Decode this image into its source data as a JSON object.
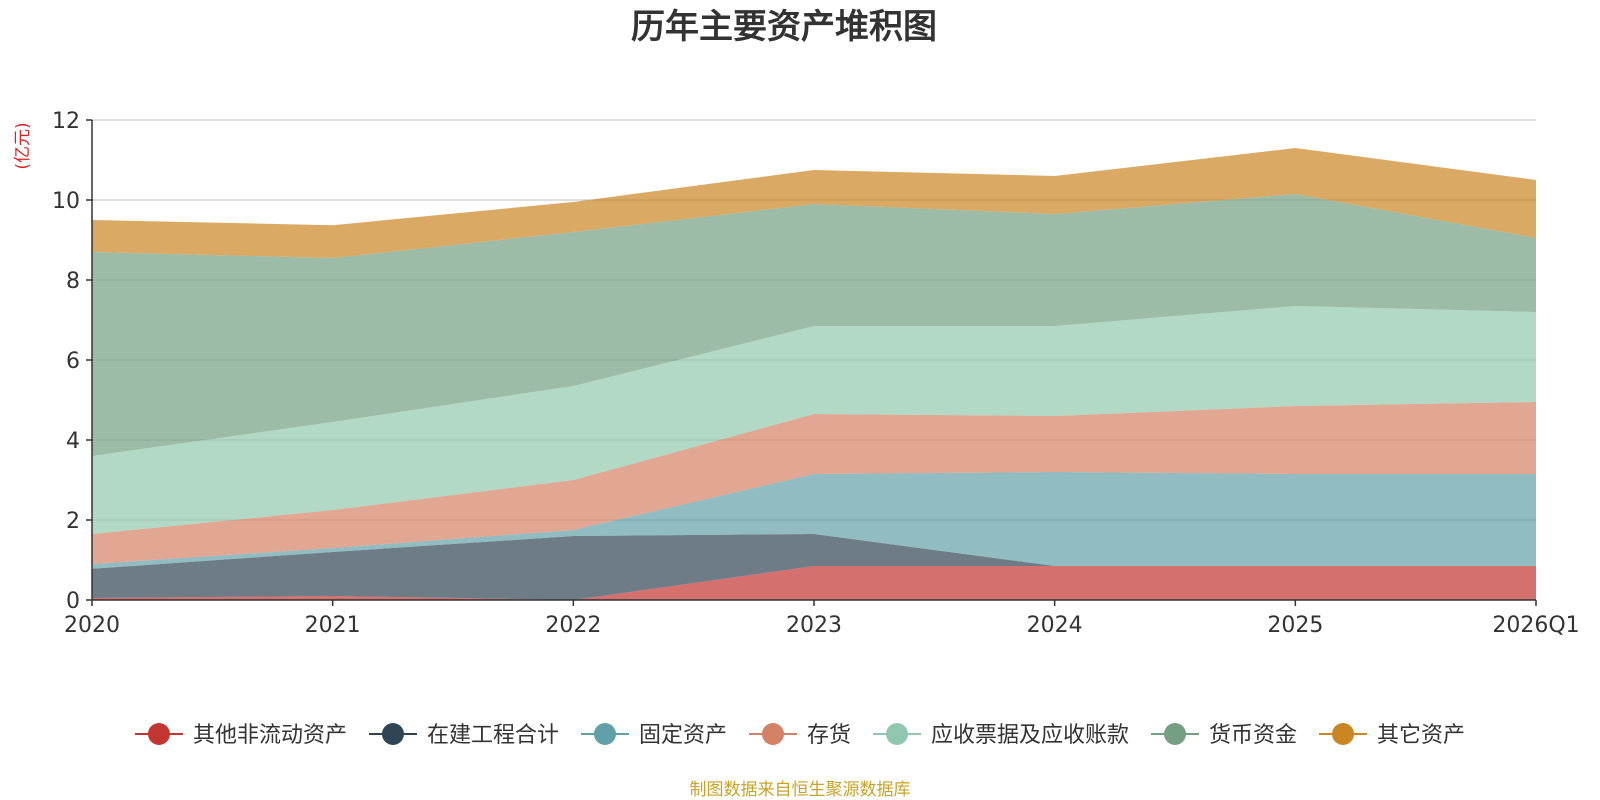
{
  "chart_data": {
    "type": "area",
    "stacked": true,
    "title": "历年主要资产堆积图",
    "ylabel": "(亿元)",
    "xlabel": "",
    "ylim": [
      0,
      12
    ],
    "yticks": [
      0,
      2,
      4,
      6,
      8,
      10,
      12
    ],
    "categories": [
      "2020",
      "2021",
      "2022",
      "2023",
      "2024",
      "2025",
      "2026Q1"
    ],
    "legend_position": "bottom",
    "series": [
      {
        "name": "其他非流动资产",
        "color": "#c23531",
        "values": [
          0.05,
          0.1,
          0.0,
          0.85,
          0.85,
          0.85,
          0.85
        ]
      },
      {
        "name": "在建工程合计",
        "color": "#2f4554",
        "values": [
          0.73,
          1.1,
          1.6,
          0.8,
          0.0,
          0.0,
          0.0
        ]
      },
      {
        "name": "固定资产",
        "color": "#61a0a8",
        "values": [
          0.12,
          0.1,
          0.15,
          1.5,
          2.35,
          2.3,
          2.3
        ]
      },
      {
        "name": "存货",
        "color": "#d48265",
        "values": [
          0.75,
          0.95,
          1.25,
          1.5,
          1.4,
          1.7,
          1.8
        ]
      },
      {
        "name": "应收票据及应收账款",
        "color": "#91c7ae",
        "values": [
          1.95,
          2.2,
          2.35,
          2.2,
          2.25,
          2.5,
          2.25
        ]
      },
      {
        "name": "货币资金",
        "color": "#749f83",
        "values": [
          5.1,
          4.1,
          3.85,
          3.05,
          2.8,
          2.8,
          1.85
        ]
      },
      {
        "name": "其它资产",
        "color": "#ca8622",
        "values": [
          0.8,
          0.82,
          0.75,
          0.85,
          0.95,
          1.15,
          1.45
        ]
      }
    ],
    "source": "制图数据来自恒生聚源数据库",
    "source_color": "#c9a227",
    "ylabel_color": "#e02020",
    "grid": true
  }
}
